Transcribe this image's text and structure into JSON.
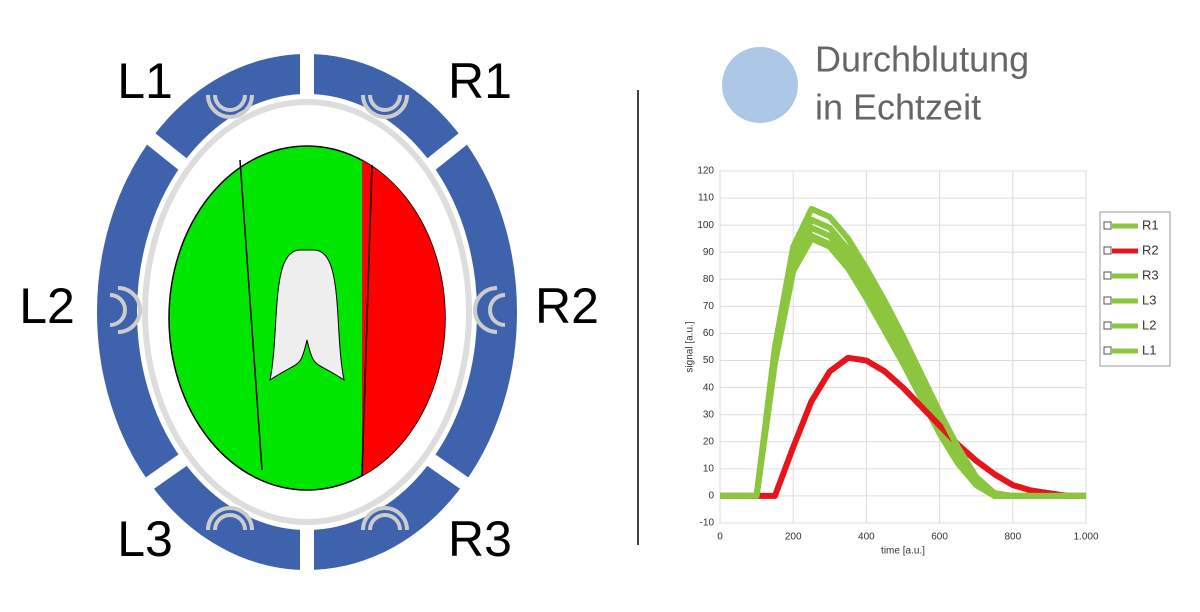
{
  "diagram": {
    "labels": [
      "L1",
      "R1",
      "L2",
      "R2",
      "L3",
      "R3"
    ]
  },
  "logo": {
    "lines": [
      "Durchblutung",
      "in Echtzeit"
    ]
  },
  "chart_data": {
    "type": "line",
    "x_label": "time [a.u.]",
    "y_label": "signal [a.u.]",
    "x": [
      0,
      50,
      100,
      150,
      200,
      250,
      300,
      350,
      400,
      450,
      500,
      550,
      600,
      650,
      700,
      750,
      800,
      850,
      900,
      950,
      1000
    ],
    "series": [
      {
        "name": "R1",
        "color": "#8cc63f",
        "values": [
          0,
          0,
          0,
          55,
          92,
          106,
          103,
          95,
          84,
          72,
          59,
          45,
          31,
          18,
          7,
          1,
          0,
          0,
          0,
          0,
          0
        ]
      },
      {
        "name": "R2",
        "color": "#e8141c",
        "values": [
          0,
          0,
          0,
          0,
          18,
          35,
          46,
          51,
          50,
          46,
          40,
          33,
          26,
          19,
          13,
          8,
          4,
          2,
          1,
          0,
          0
        ]
      },
      {
        "name": "R3",
        "color": "#8cc63f",
        "values": [
          0,
          0,
          0,
          53,
          89,
          102,
          99,
          91,
          80,
          68,
          55,
          41,
          28,
          16,
          6,
          1,
          0,
          0,
          0,
          0,
          0
        ]
      },
      {
        "name": "L3",
        "color": "#8cc63f",
        "values": [
          0,
          0,
          0,
          51,
          86,
          99,
          96,
          88,
          77,
          65,
          52,
          39,
          26,
          14,
          5,
          0,
          0,
          0,
          0,
          0,
          0
        ]
      },
      {
        "name": "L2",
        "color": "#8cc63f",
        "values": [
          0,
          0,
          0,
          50,
          84,
          96,
          93,
          85,
          74,
          62,
          50,
          37,
          24,
          13,
          4,
          0,
          0,
          0,
          0,
          0,
          0
        ]
      },
      {
        "name": "L1",
        "color": "#8cc63f",
        "values": [
          0,
          0,
          0,
          49,
          83,
          95,
          92,
          84,
          73,
          61,
          49,
          36,
          23,
          12,
          4,
          0,
          0,
          0,
          0,
          0,
          0
        ]
      }
    ],
    "xlim": [
      0,
      1000
    ],
    "xticks": [
      0,
      200,
      400,
      600,
      800,
      {
        "value": 1000,
        "label": "1.000"
      }
    ],
    "ylim": [
      -10,
      120
    ],
    "yticks": [
      -10,
      0,
      10,
      20,
      30,
      40,
      50,
      60,
      70,
      80,
      90,
      100,
      110,
      120
    ],
    "grid": true
  }
}
